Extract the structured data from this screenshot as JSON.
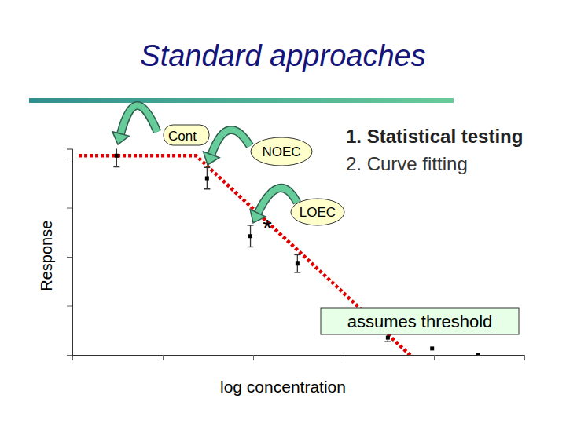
{
  "chart_data": {
    "type": "scatter",
    "title": "Standard approaches",
    "x_label": "log concentration",
    "y_label": "Response",
    "x": [
      0.49,
      1.49,
      1.97,
      2.49,
      3.49,
      3.98,
      4.49
    ],
    "values": [
      4.06,
      3.6,
      2.42,
      1.86,
      0.35,
      0.13,
      0.0
    ],
    "errors": [
      0.23,
      0.22,
      0.22,
      0.18,
      0.08,
      0.0,
      0.0
    ],
    "color": "#000000",
    "marker": "square",
    "xlim": [
      0,
      5
    ],
    "ylim": [
      0,
      4.2
    ],
    "xticks": [
      0,
      1,
      2,
      3,
      4,
      5
    ],
    "yticks": [
      0,
      1,
      2,
      3,
      4
    ],
    "tick_labels": false,
    "threshold_line": {
      "x": [
        0.07,
        1.37,
        3.81
      ],
      "values": [
        4.06,
        4.06,
        -0.13
      ],
      "color": "#e00000",
      "line_style": "dotted"
    },
    "annotations": [
      "Cont",
      "NOEC",
      "*",
      "LOEC",
      "1. Statistical testing",
      "2. Curve fitting",
      "assumes threshold"
    ]
  }
}
